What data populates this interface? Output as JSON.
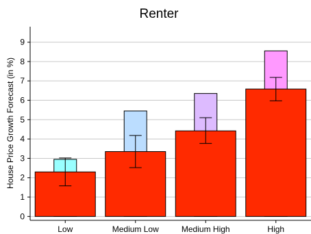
{
  "chart_data": {
    "type": "bar",
    "title": "Renter",
    "ylabel": "House Price Growth Forecast (in %)",
    "xlabel": "",
    "categories": [
      "Low",
      "Medium Low",
      "Medium High",
      "High"
    ],
    "ylim": [
      -0.2,
      9.8
    ],
    "yticks": [
      0,
      1,
      2,
      3,
      4,
      5,
      6,
      7,
      8,
      9
    ],
    "grid": true,
    "series": [
      {
        "values": [
          2.95,
          5.45,
          6.35,
          8.55
        ],
        "colors": [
          "#99ffff",
          "#bbddff",
          "#ddbbff",
          "#ff99ff"
        ],
        "layer": "back"
      },
      {
        "values": [
          2.3,
          3.35,
          4.42,
          6.58
        ],
        "error_low": [
          1.58,
          2.52,
          3.77,
          5.97
        ],
        "error_high": [
          3.02,
          4.18,
          5.1,
          7.18
        ],
        "color": "#ff2a00",
        "layer": "front"
      }
    ]
  }
}
